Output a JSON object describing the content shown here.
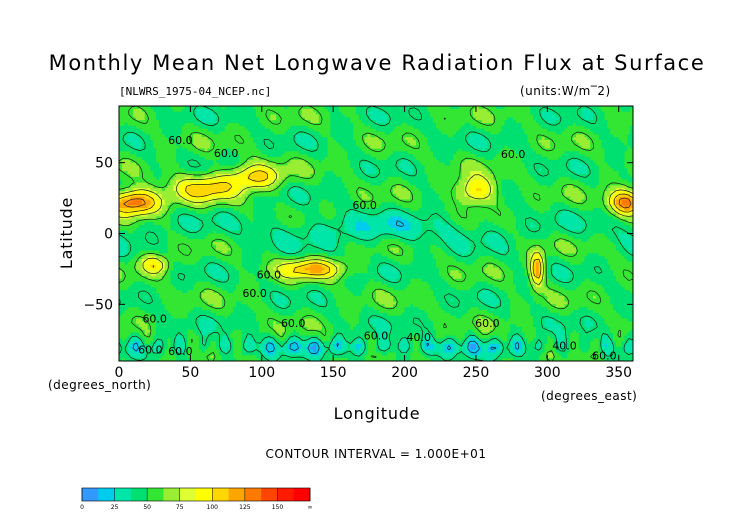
{
  "chart_data": {
    "type": "heatmap",
    "title": "Monthly Mean Net Longwave Radiation Flux at Surface",
    "source_file": "[NLWRS_1975-04_NCEP.nc]",
    "units_label": "(units:W/m^2)",
    "xlabel": "Longitude",
    "ylabel": "Latitude",
    "x_unit_label": "(degrees_east)",
    "y_unit_label": "(degrees_north)",
    "xlim": [
      0,
      360
    ],
    "ylim": [
      -90,
      90
    ],
    "x_ticks": [
      0,
      50,
      100,
      150,
      200,
      250,
      300,
      350
    ],
    "y_ticks": [
      50,
      0,
      -50
    ],
    "contour_interval_text": "CONTOUR INTERVAL = 1.000E+01",
    "contour_labels": [
      {
        "text": "60.0",
        "lon": 22,
        "lat": -82
      },
      {
        "text": "60.0",
        "lon": 25,
        "lat": -60
      },
      {
        "text": "60.0",
        "lon": 43,
        "lat": -83
      },
      {
        "text": "60.0",
        "lon": 43,
        "lat": 66
      },
      {
        "text": "60.0",
        "lon": 75,
        "lat": 57
      },
      {
        "text": "60.0",
        "lon": 95,
        "lat": -42
      },
      {
        "text": "60.0",
        "lon": 105,
        "lat": -29
      },
      {
        "text": "60.0",
        "lon": 122,
        "lat": -63
      },
      {
        "text": "60.0",
        "lon": 172,
        "lat": 20
      },
      {
        "text": "60.0",
        "lon": 180,
        "lat": -72
      },
      {
        "text": "40.0",
        "lon": 210,
        "lat": -73
      },
      {
        "text": "60.0",
        "lon": 258,
        "lat": -63
      },
      {
        "text": "60.0",
        "lon": 276,
        "lat": 56
      },
      {
        "text": "40.0",
        "lon": 312,
        "lat": -79
      },
      {
        "text": "60.0",
        "lon": 340,
        "lat": -86
      }
    ],
    "colorbar": {
      "colors": [
        "#3399ff",
        "#00ccee",
        "#00e6a8",
        "#00e070",
        "#33e633",
        "#99ee33",
        "#ddff33",
        "#ffff00",
        "#ffd700",
        "#ffa500",
        "#ff7a00",
        "#ff4400",
        "#ff1a00",
        "#ff0000"
      ],
      "tick_labels": [
        "0",
        "25",
        "50",
        "75",
        "100",
        "125",
        "150",
        "∞"
      ]
    }
  }
}
